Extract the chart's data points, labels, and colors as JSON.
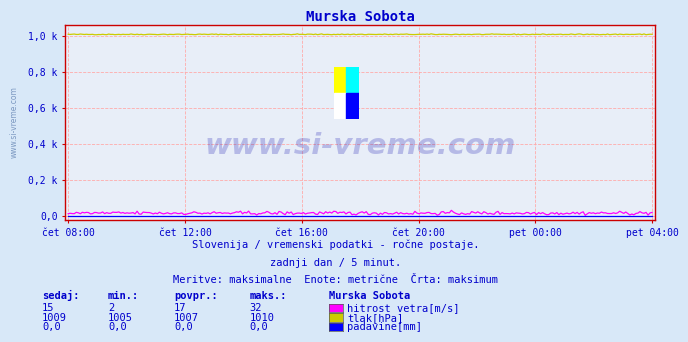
{
  "title": "Murska Sobota",
  "title_color": "#0000cc",
  "bg_color": "#d8e8f8",
  "plot_bg_color": "#e8eef8",
  "grid_color": "#ffaaaa",
  "x_labels": [
    "čet 08:00",
    "čet 12:00",
    "čet 16:00",
    "čet 20:00",
    "pet 00:00",
    "pet 04:00"
  ],
  "x_ticks_norm": [
    0.0,
    0.2,
    0.4,
    0.6,
    0.8,
    1.0
  ],
  "ytick_labels": [
    "0,0",
    "0,2 k",
    "0,4 k",
    "0,6 k",
    "0,8 k",
    "1,0 k"
  ],
  "ytick_values": [
    0.0,
    0.2,
    0.4,
    0.6,
    0.8,
    1.0
  ],
  "ymin": -0.025,
  "ymax": 1.06,
  "n_points": 289,
  "wind_color": "#ff00ff",
  "pressure_color": "#cccc00",
  "rain_color": "#0000ff",
  "axis_color": "#cc0000",
  "text_color": "#0000cc",
  "watermark_text": "www.si-vreme.com",
  "watermark_color": "#0000aa",
  "left_watermark_color": "#5577aa",
  "subtitle1": "Slovenija / vremenski podatki - ročne postaje.",
  "subtitle2": "zadnji dan / 5 minut.",
  "subtitle3": "Meritve: maksimalne  Enote: metrične  Črta: maksimum",
  "table_header": [
    "sedaj:",
    "min.:",
    "povpr.:",
    "maks.:",
    "Murska Sobota"
  ],
  "table_row1": [
    "15",
    "2",
    "17",
    "32",
    "hitrost vetra[m/s]"
  ],
  "table_row2": [
    "1009",
    "1005",
    "1007",
    "1010",
    "tlak[hPa]"
  ],
  "table_row3": [
    "0,0",
    "0,0",
    "0,0",
    "0,0",
    "padavine[mm]"
  ],
  "logo_colors": [
    "#ffff00",
    "#00ffff",
    "#ffffff",
    "#0000ff"
  ]
}
